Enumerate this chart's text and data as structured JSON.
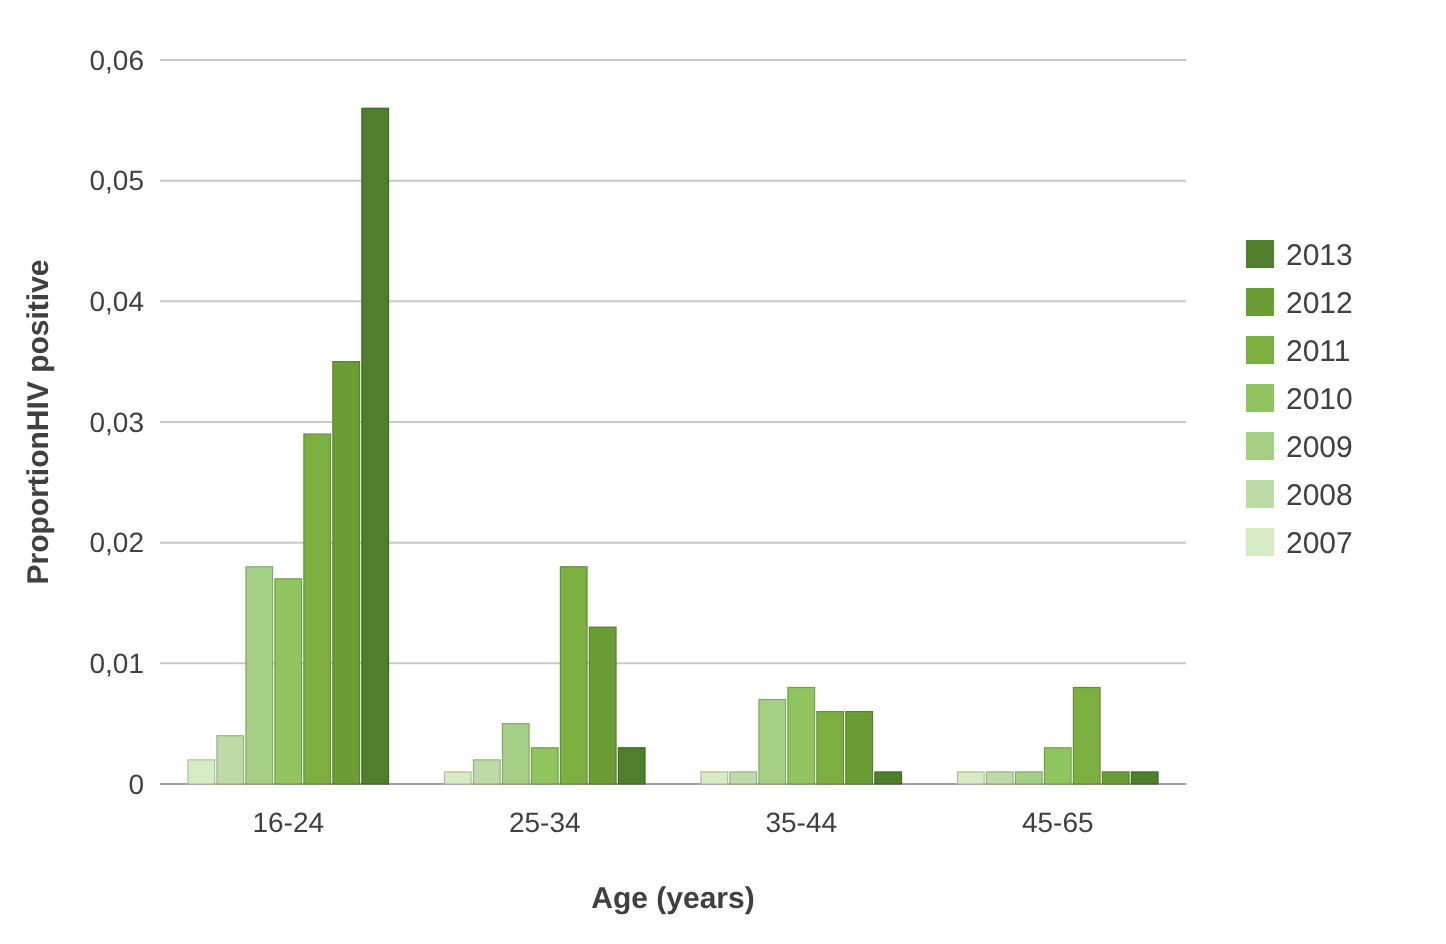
{
  "chart_data": {
    "type": "bar",
    "xlabel": "Age (years)",
    "ylabel": "ProportionHIV positive",
    "categories": [
      "16-24",
      "25-34",
      "35-44",
      "45-65"
    ],
    "ylim": [
      0,
      0.06
    ],
    "yticks": [
      0,
      {
        "value": 0.01,
        "label": "0,01"
      },
      {
        "value": 0.02,
        "label": "0,02"
      },
      {
        "value": 0.03,
        "label": "0,03"
      },
      {
        "value": 0.04,
        "label": "0,04"
      },
      {
        "value": 0.05,
        "label": "0,05"
      },
      {
        "value": 0.06,
        "label": "0,06"
      }
    ],
    "grid": true,
    "legend": "right",
    "series": [
      {
        "name": "2007",
        "color": "#d6ecc5",
        "values": [
          0.002,
          0.001,
          0.001,
          0.001
        ]
      },
      {
        "name": "2008",
        "color": "#bddba6",
        "values": [
          0.004,
          0.002,
          0.001,
          0.001
        ]
      },
      {
        "name": "2009",
        "color": "#a6cf86",
        "values": [
          0.018,
          0.005,
          0.007,
          0.001
        ]
      },
      {
        "name": "2010",
        "color": "#8fc45f",
        "values": [
          0.017,
          0.003,
          0.008,
          0.003
        ]
      },
      {
        "name": "2011",
        "color": "#7bb040",
        "values": [
          0.029,
          0.018,
          0.006,
          0.008
        ]
      },
      {
        "name": "2012",
        "color": "#6a9e35",
        "values": [
          0.035,
          0.013,
          0.006,
          0.001
        ]
      },
      {
        "name": "2013",
        "color": "#4f7f2a",
        "values": [
          0.056,
          0.003,
          0.001,
          0.001
        ]
      }
    ]
  }
}
